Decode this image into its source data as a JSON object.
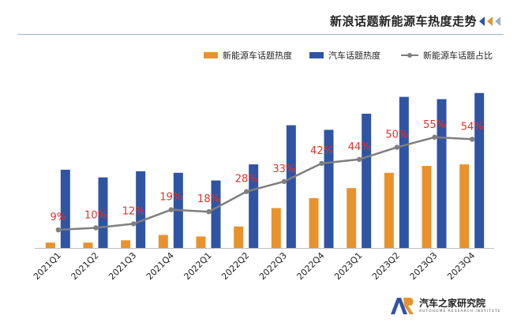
{
  "header": {
    "title": "新浪话题新能源车热度走势"
  },
  "chart_data": {
    "type": "bar",
    "categories": [
      "2021Q1",
      "2021Q2",
      "2021Q3",
      "2021Q4",
      "2022Q1",
      "2022Q2",
      "2022Q3",
      "2022Q4",
      "2023Q1",
      "2023Q2",
      "2023Q3",
      "2023Q4"
    ],
    "series": [
      {
        "name": "新能源车话题热度",
        "type": "bar",
        "color": "#e8922e",
        "values": [
          7,
          7,
          10,
          17,
          15,
          28,
          52,
          65,
          78,
          98,
          107,
          109
        ]
      },
      {
        "name": "汽车话题热度",
        "type": "bar",
        "color": "#2f54a4",
        "values": [
          102,
          92,
          100,
          98,
          88,
          109,
          160,
          154,
          175,
          197,
          194,
          202
        ]
      },
      {
        "name": "新能源车话题占比",
        "type": "line",
        "color": "#7f7f7f",
        "values": [
          9,
          10,
          12,
          19,
          18,
          28,
          33,
          42,
          44,
          50,
          55,
          54
        ]
      }
    ],
    "data_labels": [
      "9%",
      "10%",
      "12%",
      "19%",
      "18%",
      "28%",
      "33%",
      "42%",
      "44%",
      "50%",
      "55%",
      "54%"
    ],
    "title": "新浪话题新能源车热度走势",
    "xlabel": "",
    "ylabel": "",
    "ylim": [
      0,
      210
    ],
    "y2lim": [
      0,
      80
    ],
    "legend_position": "top-right",
    "grid": false,
    "label_color": "#e8312a"
  },
  "branding": {
    "name": "汽车之家研究院",
    "subtitle": "AUTOHOME RESEARCH INSTITUTE"
  }
}
